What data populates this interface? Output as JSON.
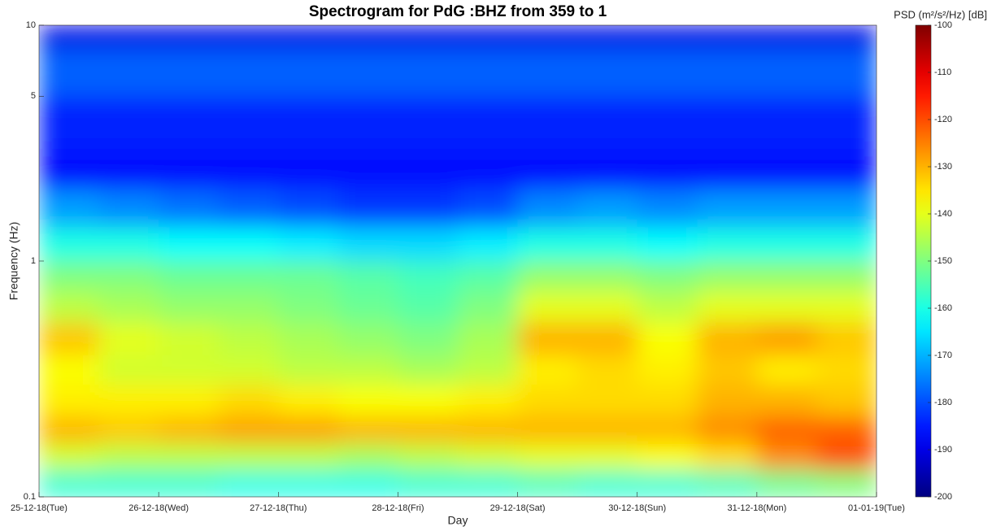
{
  "chart_data": {
    "type": "spectrogram",
    "title": "Spectrogram for PdG :BHZ from 359 to 1",
    "x_label": "Day",
    "y_label": "Frequency (Hz)",
    "colorbar_label": "PSD (m²/s²/Hz) [dB]",
    "colormap": "jet",
    "y_scale": "log",
    "xlim": [
      0,
      7
    ],
    "xticks": [
      {
        "value": 0,
        "label": "25-12-18(Tue)"
      },
      {
        "value": 1,
        "label": "26-12-18(Wed)"
      },
      {
        "value": 2,
        "label": "27-12-18(Thu)"
      },
      {
        "value": 3,
        "label": "28-12-18(Fri)"
      },
      {
        "value": 4,
        "label": "29-12-18(Sat)"
      },
      {
        "value": 5,
        "label": "30-12-18(Sun)"
      },
      {
        "value": 6,
        "label": "31-12-18(Mon)"
      },
      {
        "value": 7,
        "label": "01-01-19(Tue)"
      }
    ],
    "ylim": [
      0.1,
      10
    ],
    "yticks": [
      0.1,
      1,
      5,
      10
    ],
    "clim": [
      -200,
      -100
    ],
    "cticks": [
      -200,
      -190,
      -180,
      -170,
      -160,
      -150,
      -140,
      -130,
      -120,
      -110,
      -100
    ],
    "x_edges": [
      0,
      0.5,
      1,
      1.5,
      2,
      2.5,
      3,
      3.5,
      4,
      4.5,
      5,
      5.5,
      6,
      6.5,
      7
    ],
    "freq_edges": [
      0.1,
      0.13,
      0.17,
      0.22,
      0.3,
      0.4,
      0.55,
      0.75,
      1,
      1.4,
      2,
      3,
      5,
      8,
      10
    ],
    "values": [
      [
        -158,
        -158,
        -158,
        -160,
        -160,
        -160,
        -158,
        -158,
        -156,
        -158,
        -158,
        -156,
        -152,
        -150
      ],
      [
        -142,
        -144,
        -144,
        -144,
        -144,
        -146,
        -144,
        -142,
        -140,
        -140,
        -138,
        -134,
        -126,
        -120
      ],
      [
        -130,
        -132,
        -130,
        -128,
        -128,
        -130,
        -130,
        -130,
        -130,
        -130,
        -130,
        -126,
        -122,
        -122
      ],
      [
        -136,
        -136,
        -136,
        -134,
        -136,
        -138,
        -138,
        -136,
        -134,
        -134,
        -134,
        -130,
        -130,
        -132
      ],
      [
        -138,
        -142,
        -142,
        -142,
        -144,
        -144,
        -146,
        -144,
        -136,
        -134,
        -136,
        -132,
        -136,
        -134
      ],
      [
        -132,
        -140,
        -142,
        -144,
        -146,
        -148,
        -150,
        -146,
        -130,
        -130,
        -138,
        -130,
        -128,
        -132
      ],
      [
        -144,
        -146,
        -148,
        -148,
        -150,
        -152,
        -154,
        -150,
        -140,
        -140,
        -144,
        -140,
        -140,
        -140
      ],
      [
        -150,
        -150,
        -152,
        -152,
        -152,
        -154,
        -156,
        -154,
        -148,
        -148,
        -150,
        -148,
        -148,
        -148
      ],
      [
        -160,
        -160,
        -162,
        -162,
        -164,
        -166,
        -166,
        -164,
        -160,
        -160,
        -162,
        -160,
        -160,
        -160
      ],
      [
        -172,
        -174,
        -176,
        -178,
        -180,
        -182,
        -182,
        -180,
        -174,
        -172,
        -174,
        -172,
        -172,
        -172
      ],
      [
        -186,
        -186,
        -186,
        -186,
        -186,
        -186,
        -186,
        -186,
        -186,
        -186,
        -186,
        -186,
        -186,
        -186
      ],
      [
        -184,
        -184,
        -184,
        -184,
        -184,
        -184,
        -184,
        -184,
        -184,
        -184,
        -184,
        -184,
        -184,
        -184
      ],
      [
        -178,
        -178,
        -178,
        -178,
        -178,
        -178,
        -178,
        -178,
        -178,
        -178,
        -178,
        -178,
        -178,
        -178
      ],
      [
        -190,
        -190,
        -190,
        -190,
        -190,
        -190,
        -190,
        -190,
        -190,
        -190,
        -190,
        -190,
        -190,
        -190
      ]
    ]
  }
}
